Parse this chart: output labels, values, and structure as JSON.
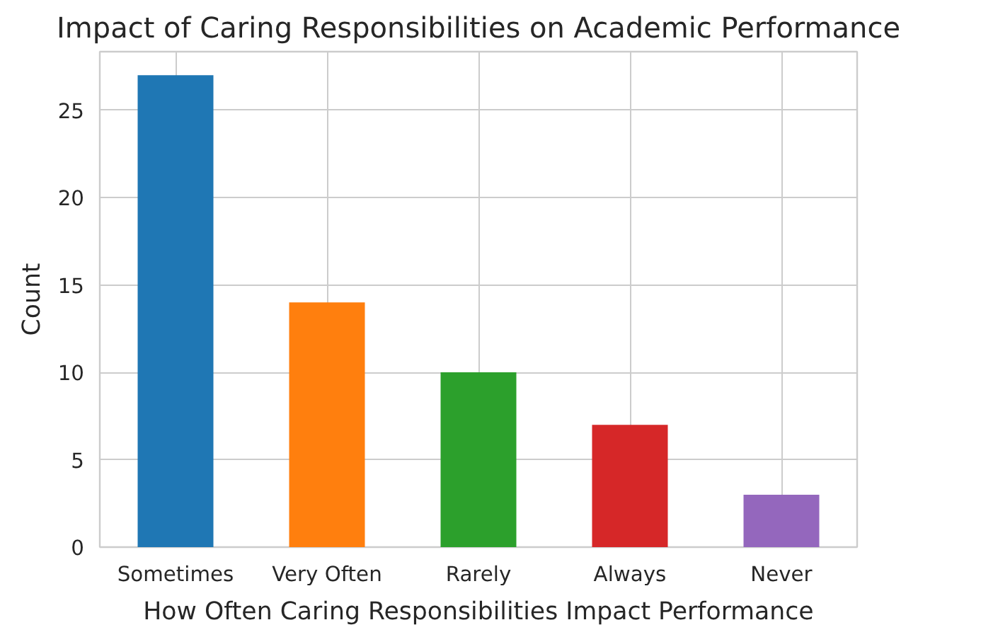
{
  "chart_data": {
    "type": "bar",
    "title": "Impact of Caring Responsibilities on Academic Performance",
    "xlabel": "How Often Caring Responsibilities Impact Performance",
    "ylabel": "Count",
    "categories": [
      "Sometimes",
      "Very Often",
      "Rarely",
      "Always",
      "Never"
    ],
    "values": [
      27,
      14,
      10,
      7,
      3
    ],
    "colors": [
      "#1f77b4",
      "#ff7f0e",
      "#2ca02c",
      "#d62728",
      "#9467bd"
    ],
    "ylim": [
      0,
      28.35
    ],
    "yticks": [
      0,
      5,
      10,
      15,
      20,
      25
    ],
    "grid": true
  }
}
